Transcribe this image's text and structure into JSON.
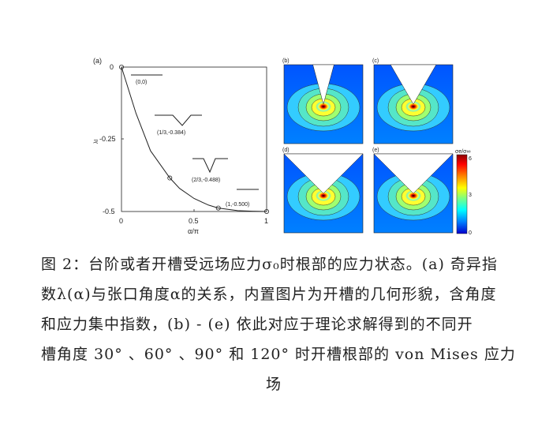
{
  "figure": {
    "panel_a": {
      "label": "(a)",
      "ylabel": "λI",
      "xlabel": "α/π",
      "yticks": [
        "0",
        "-0.25",
        "-0.5"
      ],
      "xticks": [
        "0",
        "0.5",
        "1"
      ],
      "annotations": [
        "(0,0)",
        "(1/3,-0.384)",
        "(2/3,-0.488)",
        "(1,-0.500)"
      ]
    },
    "contour_panels": [
      {
        "label": "(b)",
        "notch_angle_deg": 30
      },
      {
        "label": "(c)",
        "notch_angle_deg": 60
      },
      {
        "label": "(d)",
        "notch_angle_deg": 90
      },
      {
        "label": "(e)",
        "notch_angle_deg": 120
      }
    ],
    "colorbar": {
      "title": "σe/σ∞",
      "ticks": [
        "6",
        "3",
        "0"
      ],
      "colors": [
        "#8b0000",
        "#ff0000",
        "#ff8c00",
        "#ffff00",
        "#7fff7f",
        "#00ffff",
        "#0080ff",
        "#0000cc"
      ]
    }
  },
  "chart_data": {
    "type": "line",
    "title": "",
    "xlabel": "α/π",
    "ylabel": "λI",
    "xlim": [
      0,
      1
    ],
    "ylim": [
      -0.5,
      0
    ],
    "series": [
      {
        "x": [
          0,
          0.1,
          0.2,
          0.333,
          0.4,
          0.5,
          0.6,
          0.667,
          0.8,
          0.9,
          1.0
        ],
        "values": [
          0,
          -0.16,
          -0.29,
          -0.384,
          -0.42,
          -0.455,
          -0.478,
          -0.488,
          -0.497,
          -0.499,
          -0.5
        ]
      }
    ],
    "markers": [
      {
        "x": 0,
        "y": 0
      },
      {
        "x": 0.333,
        "y": -0.384
      },
      {
        "x": 0.667,
        "y": -0.488
      },
      {
        "x": 1.0,
        "y": -0.5
      }
    ]
  },
  "caption": {
    "lines": [
      "图 2：台阶或者开槽受远场应力σ₀时根部的应力状态。(a) 奇异指",
      "数λ(α)与张口角度α的关系，内置图片为开槽的几何形貌，含角度",
      "和应力集中指数，(b) - (e) 依此对应于理论求解得到的不同开",
      "槽角度 30° 、60° 、90° 和 120° 时开槽根部的 von Mises 应力",
      "场"
    ]
  }
}
